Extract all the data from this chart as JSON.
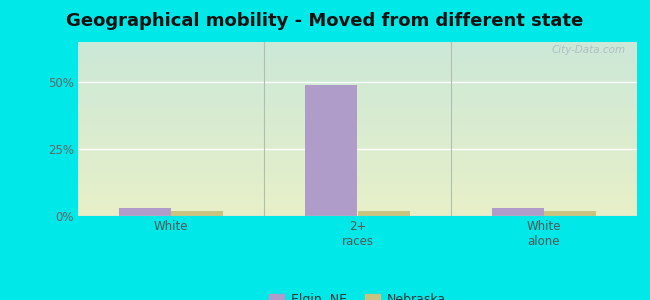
{
  "title": "Geographical mobility - Moved from different state",
  "categories": [
    "White",
    "2+\nraces",
    "White\nalone"
  ],
  "elgin_values": [
    3.0,
    49.0,
    3.0
  ],
  "nebraska_values": [
    2.0,
    2.0,
    2.0
  ],
  "elgin_color": "#b09cc8",
  "nebraska_color": "#c8c480",
  "outer_bg": "#00e8e8",
  "plot_bg_top": "#d8efe0",
  "plot_bg_bottom": "#eef5d8",
  "ylim": [
    0,
    65
  ],
  "yticks": [
    0,
    25,
    50
  ],
  "ytick_labels": [
    "0%",
    "25%",
    "50%"
  ],
  "bar_width": 0.28,
  "title_fontsize": 13,
  "watermark": "City-Data.com",
  "legend_labels": [
    "Elgin, NE",
    "Nebraska"
  ],
  "grid_color": "#ffffff",
  "divider_color": "#b0c0b0"
}
